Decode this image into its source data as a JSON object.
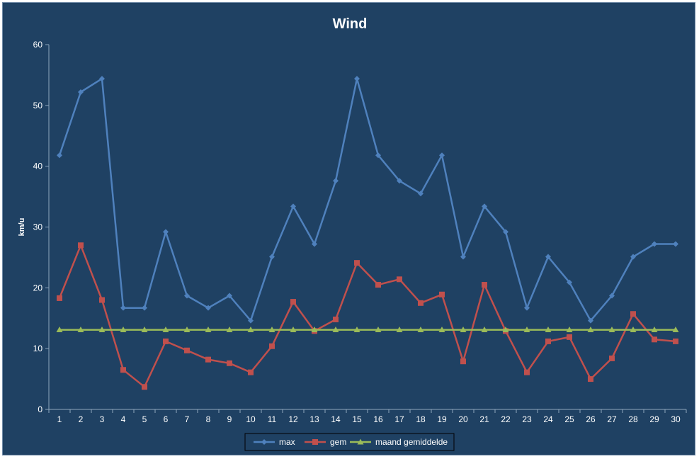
{
  "chart_data": {
    "type": "line",
    "title": "Wind",
    "xlabel": "",
    "ylabel": "km/u",
    "ylim": [
      0,
      60
    ],
    "yticks": [
      0,
      10,
      20,
      30,
      40,
      50,
      60
    ],
    "categories": [
      "1",
      "2",
      "3",
      "4",
      "5",
      "6",
      "7",
      "8",
      "9",
      "10",
      "11",
      "12",
      "13",
      "14",
      "15",
      "16",
      "17",
      "18",
      "19",
      "20",
      "21",
      "22",
      "23",
      "24",
      "25",
      "26",
      "27",
      "28",
      "29",
      "30"
    ],
    "grid": false,
    "legend_position": "bottom",
    "series": [
      {
        "name": "max",
        "color": "#4f81bd",
        "marker": "diamond",
        "values": [
          41.8,
          52.2,
          54.4,
          16.7,
          16.7,
          29.2,
          18.7,
          16.7,
          18.7,
          14.6,
          25.1,
          33.4,
          27.2,
          37.6,
          54.4,
          41.8,
          37.6,
          35.5,
          41.8,
          25.1,
          33.4,
          29.2,
          16.7,
          25.1,
          20.9,
          14.6,
          18.7,
          25.1,
          27.2,
          27.2
        ]
      },
      {
        "name": "gem",
        "color": "#c0504d",
        "marker": "square",
        "values": [
          18.3,
          27.0,
          18.0,
          6.5,
          3.7,
          11.2,
          9.7,
          8.2,
          7.6,
          6.1,
          10.4,
          17.7,
          12.9,
          14.8,
          24.1,
          20.5,
          21.4,
          17.5,
          18.9,
          7.9,
          20.5,
          12.9,
          6.1,
          11.2,
          11.9,
          5.0,
          8.4,
          15.7,
          11.5,
          11.2
        ]
      },
      {
        "name": "maand gemiddelde",
        "color": "#9bbb59",
        "marker": "triangle",
        "values": [
          13.1,
          13.1,
          13.1,
          13.1,
          13.1,
          13.1,
          13.1,
          13.1,
          13.1,
          13.1,
          13.1,
          13.1,
          13.1,
          13.1,
          13.1,
          13.1,
          13.1,
          13.1,
          13.1,
          13.1,
          13.1,
          13.1,
          13.1,
          13.1,
          13.1,
          13.1,
          13.1,
          13.1,
          13.1,
          13.1
        ]
      }
    ]
  }
}
